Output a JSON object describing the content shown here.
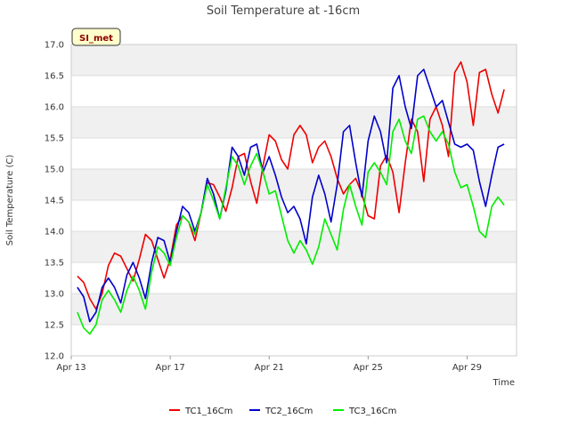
{
  "chart_data": {
    "type": "line",
    "title": "Soil Temperature at -16cm",
    "xlabel": "Time",
    "ylabel": "Soil Temperature (C)",
    "site_label": "SI_met",
    "ylim": [
      12.0,
      17.0
    ],
    "yticks": [
      "12.0",
      "12.5",
      "13.0",
      "13.5",
      "14.0",
      "14.5",
      "15.0",
      "15.5",
      "16.0",
      "16.5",
      "17.0"
    ],
    "xlim": [
      "2023-04-13",
      "2023-05-01"
    ],
    "xticks": [
      {
        "label": "Apr 13",
        "date": "2023-04-13"
      },
      {
        "label": "Apr 17",
        "date": "2023-04-17"
      },
      {
        "label": "Apr 21",
        "date": "2023-04-21"
      },
      {
        "label": "Apr 25",
        "date": "2023-04-25"
      },
      {
        "label": "Apr 29",
        "date": "2023-04-29"
      }
    ],
    "grid": true,
    "legend_position": "bottom",
    "series": [
      {
        "name": "TC1_16Cm",
        "color": "#ee0000",
        "points": [
          [
            "2023-04-13 06:00",
            13.28
          ],
          [
            "2023-04-13 12:00",
            13.18
          ],
          [
            "2023-04-13 18:00",
            12.92
          ],
          [
            "2023-04-14 00:00",
            12.75
          ],
          [
            "2023-04-14 06:00",
            13.0
          ],
          [
            "2023-04-14 12:00",
            13.45
          ],
          [
            "2023-04-14 18:00",
            13.65
          ],
          [
            "2023-04-15 00:00",
            13.6
          ],
          [
            "2023-04-15 06:00",
            13.4
          ],
          [
            "2023-04-15 12:00",
            13.2
          ],
          [
            "2023-04-15 18:00",
            13.55
          ],
          [
            "2023-04-16 00:00",
            13.95
          ],
          [
            "2023-04-16 06:00",
            13.85
          ],
          [
            "2023-04-16 12:00",
            13.55
          ],
          [
            "2023-04-16 18:00",
            13.25
          ],
          [
            "2023-04-17 00:00",
            13.55
          ],
          [
            "2023-04-17 06:00",
            14.1
          ],
          [
            "2023-04-17 12:00",
            14.25
          ],
          [
            "2023-04-17 18:00",
            14.15
          ],
          [
            "2023-04-18 00:00",
            13.85
          ],
          [
            "2023-04-18 06:00",
            14.3
          ],
          [
            "2023-04-18 12:00",
            14.78
          ],
          [
            "2023-04-18 18:00",
            14.75
          ],
          [
            "2023-04-19 00:00",
            14.55
          ],
          [
            "2023-04-19 06:00",
            14.32
          ],
          [
            "2023-04-19 12:00",
            14.7
          ],
          [
            "2023-04-19 18:00",
            15.2
          ],
          [
            "2023-04-20 00:00",
            15.25
          ],
          [
            "2023-04-20 06:00",
            14.8
          ],
          [
            "2023-04-20 12:00",
            14.45
          ],
          [
            "2023-04-20 18:00",
            15.05
          ],
          [
            "2023-04-21 00:00",
            15.55
          ],
          [
            "2023-04-21 06:00",
            15.45
          ],
          [
            "2023-04-21 12:00",
            15.15
          ],
          [
            "2023-04-21 18:00",
            15.0
          ],
          [
            "2023-04-22 00:00",
            15.55
          ],
          [
            "2023-04-22 06:00",
            15.7
          ],
          [
            "2023-04-22 12:00",
            15.55
          ],
          [
            "2023-04-22 18:00",
            15.1
          ],
          [
            "2023-04-23 00:00",
            15.35
          ],
          [
            "2023-04-23 06:00",
            15.45
          ],
          [
            "2023-04-23 12:00",
            15.2
          ],
          [
            "2023-04-23 18:00",
            14.85
          ],
          [
            "2023-04-24 00:00",
            14.6
          ],
          [
            "2023-04-24 06:00",
            14.75
          ],
          [
            "2023-04-24 12:00",
            14.85
          ],
          [
            "2023-04-24 18:00",
            14.6
          ],
          [
            "2023-04-25 00:00",
            14.25
          ],
          [
            "2023-04-25 06:00",
            14.2
          ],
          [
            "2023-04-25 12:00",
            15.05
          ],
          [
            "2023-04-25 18:00",
            15.22
          ],
          [
            "2023-04-26 00:00",
            14.95
          ],
          [
            "2023-04-26 06:00",
            14.3
          ],
          [
            "2023-04-26 12:00",
            15.1
          ],
          [
            "2023-04-26 18:00",
            15.8
          ],
          [
            "2023-04-27 00:00",
            15.6
          ],
          [
            "2023-04-27 06:00",
            14.8
          ],
          [
            "2023-04-27 12:00",
            15.8
          ],
          [
            "2023-04-27 18:00",
            16.0
          ],
          [
            "2023-04-28 00:00",
            15.7
          ],
          [
            "2023-04-28 06:00",
            15.2
          ],
          [
            "2023-04-28 12:00",
            16.55
          ],
          [
            "2023-04-28 18:00",
            16.72
          ],
          [
            "2023-04-29 00:00",
            16.4
          ],
          [
            "2023-04-29 06:00",
            15.7
          ],
          [
            "2023-04-29 12:00",
            16.55
          ],
          [
            "2023-04-29 18:00",
            16.6
          ],
          [
            "2023-04-30 00:00",
            16.2
          ],
          [
            "2023-04-30 06:00",
            15.9
          ],
          [
            "2023-04-30 12:00",
            16.28
          ]
        ]
      },
      {
        "name": "TC2_16Cm",
        "color": "#0000cc",
        "points": [
          [
            "2023-04-13 06:00",
            13.1
          ],
          [
            "2023-04-13 12:00",
            12.95
          ],
          [
            "2023-04-13 18:00",
            12.55
          ],
          [
            "2023-04-14 00:00",
            12.7
          ],
          [
            "2023-04-14 06:00",
            13.1
          ],
          [
            "2023-04-14 12:00",
            13.25
          ],
          [
            "2023-04-14 18:00",
            13.1
          ],
          [
            "2023-04-15 00:00",
            12.85
          ],
          [
            "2023-04-15 06:00",
            13.3
          ],
          [
            "2023-04-15 12:00",
            13.5
          ],
          [
            "2023-04-15 18:00",
            13.25
          ],
          [
            "2023-04-16 00:00",
            12.92
          ],
          [
            "2023-04-16 06:00",
            13.5
          ],
          [
            "2023-04-16 12:00",
            13.9
          ],
          [
            "2023-04-16 18:00",
            13.85
          ],
          [
            "2023-04-17 00:00",
            13.5
          ],
          [
            "2023-04-17 06:00",
            14.0
          ],
          [
            "2023-04-17 12:00",
            14.4
          ],
          [
            "2023-04-17 18:00",
            14.3
          ],
          [
            "2023-04-18 00:00",
            14.0
          ],
          [
            "2023-04-18 06:00",
            14.3
          ],
          [
            "2023-04-18 12:00",
            14.85
          ],
          [
            "2023-04-18 18:00",
            14.6
          ],
          [
            "2023-04-19 00:00",
            14.2
          ],
          [
            "2023-04-19 06:00",
            14.65
          ],
          [
            "2023-04-19 12:00",
            15.35
          ],
          [
            "2023-04-19 18:00",
            15.2
          ],
          [
            "2023-04-20 00:00",
            14.9
          ],
          [
            "2023-04-20 06:00",
            15.35
          ],
          [
            "2023-04-20 12:00",
            15.4
          ],
          [
            "2023-04-20 18:00",
            14.95
          ],
          [
            "2023-04-21 00:00",
            15.2
          ],
          [
            "2023-04-21 06:00",
            14.9
          ],
          [
            "2023-04-21 12:00",
            14.55
          ],
          [
            "2023-04-21 18:00",
            14.3
          ],
          [
            "2023-04-22 00:00",
            14.4
          ],
          [
            "2023-04-22 06:00",
            14.2
          ],
          [
            "2023-04-22 12:00",
            13.8
          ],
          [
            "2023-04-22 18:00",
            14.55
          ],
          [
            "2023-04-23 00:00",
            14.9
          ],
          [
            "2023-04-23 06:00",
            14.6
          ],
          [
            "2023-04-23 12:00",
            14.15
          ],
          [
            "2023-04-23 18:00",
            14.75
          ],
          [
            "2023-04-24 00:00",
            15.6
          ],
          [
            "2023-04-24 06:00",
            15.7
          ],
          [
            "2023-04-24 12:00",
            15.1
          ],
          [
            "2023-04-24 18:00",
            14.55
          ],
          [
            "2023-04-25 00:00",
            15.45
          ],
          [
            "2023-04-25 06:00",
            15.85
          ],
          [
            "2023-04-25 12:00",
            15.6
          ],
          [
            "2023-04-25 18:00",
            15.1
          ],
          [
            "2023-04-26 00:00",
            16.3
          ],
          [
            "2023-04-26 06:00",
            16.5
          ],
          [
            "2023-04-26 12:00",
            16.0
          ],
          [
            "2023-04-26 18:00",
            15.65
          ],
          [
            "2023-04-27 00:00",
            16.5
          ],
          [
            "2023-04-27 06:00",
            16.6
          ],
          [
            "2023-04-27 12:00",
            16.3
          ],
          [
            "2023-04-27 18:00",
            16.0
          ],
          [
            "2023-04-28 00:00",
            16.1
          ],
          [
            "2023-04-28 06:00",
            15.75
          ],
          [
            "2023-04-28 12:00",
            15.4
          ],
          [
            "2023-04-28 18:00",
            15.35
          ],
          [
            "2023-04-29 00:00",
            15.4
          ],
          [
            "2023-04-29 06:00",
            15.3
          ],
          [
            "2023-04-29 12:00",
            14.8
          ],
          [
            "2023-04-29 18:00",
            14.4
          ],
          [
            "2023-04-30 00:00",
            14.9
          ],
          [
            "2023-04-30 06:00",
            15.35
          ],
          [
            "2023-04-30 12:00",
            15.4
          ]
        ]
      },
      {
        "name": "TC3_16Cm",
        "color": "#00ee00",
        "points": [
          [
            "2023-04-13 06:00",
            12.7
          ],
          [
            "2023-04-13 12:00",
            12.45
          ],
          [
            "2023-04-13 18:00",
            12.35
          ],
          [
            "2023-04-14 00:00",
            12.5
          ],
          [
            "2023-04-14 06:00",
            12.9
          ],
          [
            "2023-04-14 12:00",
            13.05
          ],
          [
            "2023-04-14 18:00",
            12.9
          ],
          [
            "2023-04-15 00:00",
            12.7
          ],
          [
            "2023-04-15 06:00",
            13.05
          ],
          [
            "2023-04-15 12:00",
            13.28
          ],
          [
            "2023-04-15 18:00",
            13.05
          ],
          [
            "2023-04-16 00:00",
            12.75
          ],
          [
            "2023-04-16 06:00",
            13.35
          ],
          [
            "2023-04-16 12:00",
            13.75
          ],
          [
            "2023-04-16 18:00",
            13.65
          ],
          [
            "2023-04-17 00:00",
            13.45
          ],
          [
            "2023-04-17 06:00",
            13.9
          ],
          [
            "2023-04-17 12:00",
            14.25
          ],
          [
            "2023-04-17 18:00",
            14.15
          ],
          [
            "2023-04-18 00:00",
            13.95
          ],
          [
            "2023-04-18 06:00",
            14.3
          ],
          [
            "2023-04-18 12:00",
            14.75
          ],
          [
            "2023-04-18 18:00",
            14.5
          ],
          [
            "2023-04-19 00:00",
            14.2
          ],
          [
            "2023-04-19 06:00",
            14.7
          ],
          [
            "2023-04-19 12:00",
            15.2
          ],
          [
            "2023-04-19 18:00",
            15.05
          ],
          [
            "2023-04-20 00:00",
            14.75
          ],
          [
            "2023-04-20 06:00",
            15.05
          ],
          [
            "2023-04-20 12:00",
            15.25
          ],
          [
            "2023-04-20 18:00",
            14.95
          ],
          [
            "2023-04-21 00:00",
            14.6
          ],
          [
            "2023-04-21 06:00",
            14.65
          ],
          [
            "2023-04-21 12:00",
            14.25
          ],
          [
            "2023-04-21 18:00",
            13.85
          ],
          [
            "2023-04-22 00:00",
            13.65
          ],
          [
            "2023-04-22 06:00",
            13.85
          ],
          [
            "2023-04-22 12:00",
            13.7
          ],
          [
            "2023-04-22 18:00",
            13.47
          ],
          [
            "2023-04-23 00:00",
            13.75
          ],
          [
            "2023-04-23 06:00",
            14.2
          ],
          [
            "2023-04-23 12:00",
            13.95
          ],
          [
            "2023-04-23 18:00",
            13.7
          ],
          [
            "2023-04-24 00:00",
            14.35
          ],
          [
            "2023-04-24 06:00",
            14.75
          ],
          [
            "2023-04-24 12:00",
            14.4
          ],
          [
            "2023-04-24 18:00",
            14.1
          ],
          [
            "2023-04-25 00:00",
            14.95
          ],
          [
            "2023-04-25 06:00",
            15.1
          ],
          [
            "2023-04-25 12:00",
            14.95
          ],
          [
            "2023-04-25 18:00",
            14.75
          ],
          [
            "2023-04-26 00:00",
            15.6
          ],
          [
            "2023-04-26 06:00",
            15.8
          ],
          [
            "2023-04-26 12:00",
            15.45
          ],
          [
            "2023-04-26 18:00",
            15.25
          ],
          [
            "2023-04-27 00:00",
            15.8
          ],
          [
            "2023-04-27 06:00",
            15.85
          ],
          [
            "2023-04-27 12:00",
            15.6
          ],
          [
            "2023-04-27 18:00",
            15.45
          ],
          [
            "2023-04-28 00:00",
            15.6
          ],
          [
            "2023-04-28 06:00",
            15.4
          ],
          [
            "2023-04-28 12:00",
            14.95
          ],
          [
            "2023-04-28 18:00",
            14.7
          ],
          [
            "2023-04-29 00:00",
            14.75
          ],
          [
            "2023-04-29 06:00",
            14.4
          ],
          [
            "2023-04-29 12:00",
            14.0
          ],
          [
            "2023-04-29 18:00",
            13.9
          ],
          [
            "2023-04-30 00:00",
            14.4
          ],
          [
            "2023-04-30 06:00",
            14.55
          ],
          [
            "2023-04-30 12:00",
            14.42
          ]
        ]
      }
    ]
  }
}
